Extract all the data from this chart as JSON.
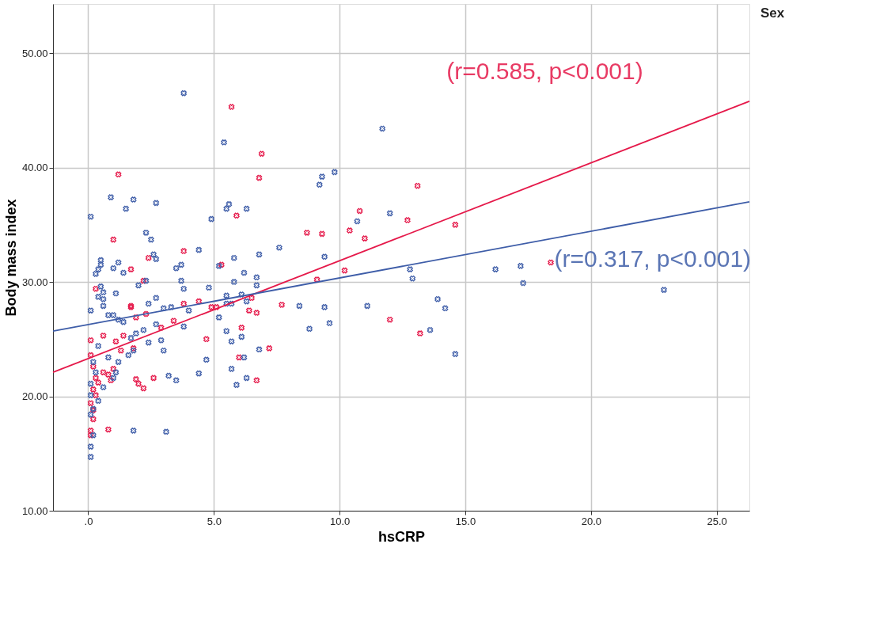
{
  "chart_data": {
    "type": "scatter",
    "xlabel": "hsCRP",
    "ylabel": "Body mass index",
    "legend_title": "Sex",
    "grid": true,
    "xlim": [
      -1.4,
      26.3
    ],
    "ylim": [
      10,
      54.3
    ],
    "xticks": [
      {
        "value": 0,
        "label": ".0"
      },
      {
        "value": 5,
        "label": "5.0"
      },
      {
        "value": 10,
        "label": "10.0"
      },
      {
        "value": 15,
        "label": "15.0"
      },
      {
        "value": 20,
        "label": "20.0"
      },
      {
        "value": 25,
        "label": "25.0"
      }
    ],
    "yticks": [
      {
        "value": 10,
        "label": "10.00"
      },
      {
        "value": 20,
        "label": "20.00"
      },
      {
        "value": 30,
        "label": "30.00"
      },
      {
        "value": 40,
        "label": "40.00"
      },
      {
        "value": 50,
        "label": "50.00"
      }
    ],
    "annotations": [
      "(r=0.585, p<0.001)",
      "(r=0.317, p<0.001)"
    ],
    "series": [
      {
        "marker": "cross",
        "color": "#e5194a",
        "x": [
          1.2,
          1.0,
          3.8,
          5.7,
          6.9,
          6.8,
          5.9,
          10.8,
          10.4,
          8.7,
          9.3,
          11.0,
          12.7,
          13.1,
          14.6,
          18.4,
          12.0,
          13.2,
          10.2,
          9.1,
          5.3,
          4.4,
          4.9,
          5.1,
          6.5,
          6.4,
          6.7,
          7.7,
          4.7,
          6.1,
          7.2,
          6.0,
          6.7,
          3.8,
          2.4,
          1.7,
          2.2,
          0.3,
          1.7,
          1.7,
          2.3,
          1.9,
          3.4,
          2.9,
          0.6,
          1.1,
          1.4,
          1.3,
          1.8,
          0.1,
          0.2,
          0.6,
          0.8,
          1.0,
          0.9,
          0.3,
          0.4,
          1.9,
          2.0,
          2.2,
          2.6,
          0.2,
          0.3,
          0.1,
          0.2,
          0.1,
          0.1,
          0.8,
          0.2,
          0.1
        ],
        "values": [
          39.4,
          33.7,
          32.7,
          45.3,
          41.2,
          39.1,
          35.8,
          36.2,
          34.5,
          34.3,
          34.2,
          33.8,
          35.4,
          38.4,
          35.0,
          31.7,
          26.7,
          25.5,
          31.0,
          30.2,
          31.5,
          28.3,
          27.8,
          27.8,
          28.6,
          27.5,
          27.3,
          28.0,
          25.0,
          26.0,
          24.2,
          23.4,
          21.4,
          28.1,
          32.1,
          31.1,
          30.1,
          29.4,
          27.9,
          27.8,
          27.2,
          26.9,
          26.6,
          26.0,
          25.3,
          24.8,
          25.3,
          24.0,
          24.2,
          23.6,
          22.6,
          22.1,
          21.9,
          22.4,
          21.4,
          21.6,
          21.2,
          21.5,
          21.1,
          20.7,
          21.6,
          20.6,
          20.1,
          19.4,
          18.0,
          17.0,
          16.6,
          17.1,
          18.8,
          24.9
        ]
      },
      {
        "marker": "cross",
        "color": "#3e5da8",
        "x": [
          0.9,
          1.8,
          1.5,
          2.7,
          0.1,
          2.3,
          2.5,
          2.6,
          2.7,
          0.5,
          0.5,
          1.2,
          1.0,
          1.4,
          0.4,
          0.3,
          3.5,
          3.7,
          2.0,
          2.3,
          3.7,
          3.8,
          0.5,
          0.6,
          1.1,
          0.4,
          0.6,
          2.7,
          2.4,
          0.6,
          0.1,
          3.0,
          3.3,
          0.8,
          1.0,
          1.2,
          1.4,
          2.7,
          2.2,
          1.9,
          1.7,
          3.8,
          2.4,
          2.9,
          3.0,
          1.6,
          1.8,
          0.8,
          1.2,
          0.4,
          0.2,
          0.3,
          1.1,
          1.0,
          3.2,
          3.5,
          0.6,
          0.4,
          0.2,
          0.1,
          0.2,
          1.8,
          3.1,
          0.1,
          0.1,
          0.1,
          0.1,
          3.8,
          5.4,
          9.3,
          9.8,
          9.2,
          5.6,
          5.5,
          6.3,
          4.9,
          4.4,
          7.6,
          10.7,
          9.4,
          6.8,
          5.8,
          5.2,
          6.2,
          6.7,
          5.8,
          6.7,
          4.8,
          5.5,
          6.1,
          5.5,
          5.7,
          6.3,
          4.0,
          8.4,
          9.4,
          11.1,
          5.2,
          8.8,
          9.6,
          5.5,
          5.7,
          6.1,
          6.8,
          4.7,
          6.2,
          4.4,
          5.7,
          6.3,
          5.9,
          11.7,
          12.0,
          12.8,
          12.9,
          13.9,
          14.2,
          13.6,
          14.6,
          16.2,
          17.2,
          17.3,
          22.9
        ],
        "values": [
          37.4,
          37.2,
          36.4,
          36.9,
          35.7,
          34.3,
          33.7,
          32.4,
          32.0,
          31.9,
          31.5,
          31.7,
          31.2,
          30.8,
          31.1,
          30.7,
          31.2,
          31.5,
          29.7,
          30.1,
          30.1,
          29.4,
          29.6,
          29.1,
          29.0,
          28.7,
          28.5,
          28.6,
          28.1,
          27.9,
          27.5,
          27.7,
          27.8,
          27.1,
          27.1,
          26.7,
          26.5,
          26.3,
          25.8,
          25.5,
          25.1,
          26.1,
          24.7,
          24.9,
          24.0,
          23.6,
          24.0,
          23.4,
          23.0,
          24.4,
          23.0,
          22.1,
          22.1,
          21.6,
          21.8,
          21.4,
          20.8,
          19.6,
          18.9,
          18.4,
          16.6,
          17.0,
          16.9,
          15.6,
          14.7,
          20.1,
          21.1,
          46.5,
          42.2,
          39.2,
          39.6,
          38.5,
          36.8,
          36.4,
          36.4,
          35.5,
          32.8,
          33.0,
          35.3,
          32.2,
          32.4,
          32.1,
          31.4,
          30.8,
          30.4,
          30.0,
          29.7,
          29.5,
          28.8,
          28.9,
          28.1,
          28.1,
          28.3,
          27.5,
          27.9,
          27.8,
          27.9,
          26.9,
          25.9,
          26.4,
          25.7,
          24.8,
          25.2,
          24.1,
          23.2,
          23.4,
          22.0,
          22.4,
          21.6,
          21.0,
          43.4,
          36.0,
          31.1,
          30.3,
          28.5,
          27.7,
          25.8,
          23.7,
          31.1,
          31.4,
          29.9,
          29.3
        ]
      },
      {
        "type": "line",
        "marker": "none",
        "line_style": "solid",
        "color": "#e5194a",
        "x": [
          -1.4,
          26.3
        ],
        "values": [
          22.1,
          45.8
        ]
      },
      {
        "type": "line",
        "marker": "none",
        "line_style": "solid",
        "color": "#3e5da8",
        "x": [
          -1.4,
          26.3
        ],
        "values": [
          25.7,
          37.0
        ]
      }
    ]
  }
}
